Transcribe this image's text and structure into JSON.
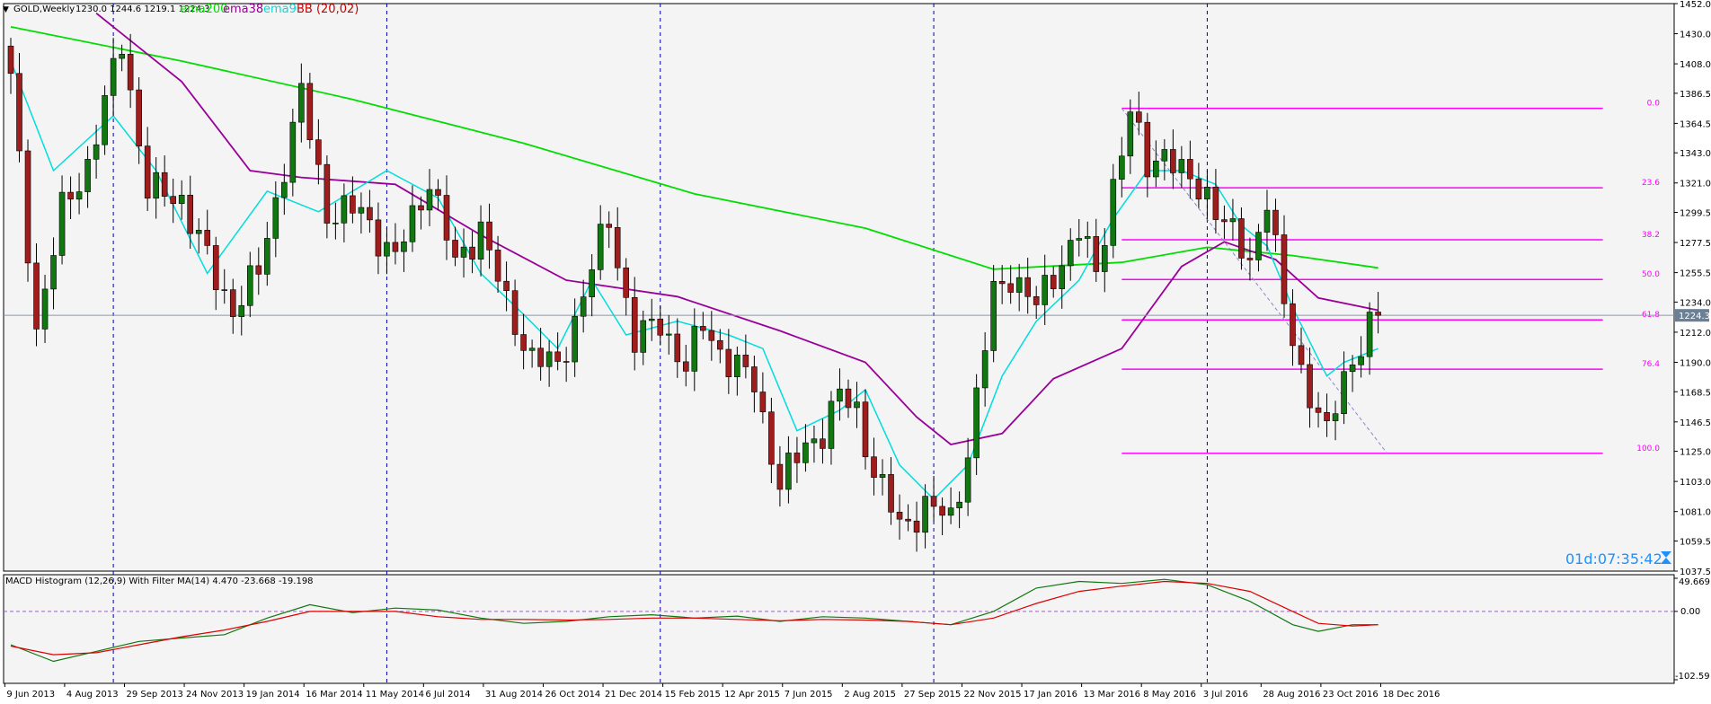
{
  "header": {
    "symbol": "GOLD,Weekly",
    "ohlc": "1230.0 1244.6 1219.1 1224.3",
    "indicators": [
      {
        "label": "ema200",
        "color": "#00dd00"
      },
      {
        "label": "ema38",
        "color": "#990099"
      },
      {
        "label": "ema9",
        "color": "#00dddd"
      },
      {
        "label": "BB (20,02)",
        "color": "#cc0000"
      }
    ]
  },
  "timer": "01d:07:35:42",
  "macd": {
    "title": "MACD Histogram (12,26,9) With Filter MA(14) 4.470 -23.668 -19.198",
    "ticks": [
      "49.669",
      "0.00",
      "-102.59"
    ]
  },
  "colors": {
    "background": "#f4f4f4",
    "bull": "#117711",
    "bear": "#a01d1d",
    "fib": "#ff00ff",
    "grid": "#0000aa",
    "axis": "#000000",
    "timer": "#1e90ff"
  },
  "chart_data": [
    {
      "type": "candlestick",
      "title": "GOLD,Weekly",
      "y_ticks": [
        1452.0,
        1430.0,
        1408.0,
        1386.5,
        1364.5,
        1343.0,
        1321.0,
        1299.5,
        1277.5,
        1255.5,
        1234.0,
        1212.0,
        1190.0,
        1168.5,
        1146.5,
        1125.0,
        1103.0,
        1081.0,
        1059.5,
        1037.5
      ],
      "x_labels": [
        "9 Jun 2013",
        "4 Aug 2013",
        "29 Sep 2013",
        "24 Nov 2013",
        "19 Jan 2014",
        "16 Mar 2014",
        "11 May 2014",
        "6 Jul 2014",
        "31 Aug 2014",
        "26 Oct 2014",
        "21 Dec 2014",
        "15 Feb 2015",
        "12 Apr 2015",
        "7 Jun 2015",
        "2 Aug 2015",
        "27 Sep 2015",
        "22 Nov 2015",
        "17 Jan 2016",
        "13 Mar 2016",
        "8 May 2016",
        "3 Jul 2016",
        "28 Aug 2016",
        "23 Oct 2016",
        "18 Dec 2016"
      ],
      "current_price": 1224.3,
      "anchor_prices": [
        [
          0,
          1395
        ],
        [
          3,
          1215
        ],
        [
          6,
          1300
        ],
        [
          9,
          1335
        ],
        [
          11,
          1378
        ],
        [
          13,
          1425
        ],
        [
          16,
          1315
        ],
        [
          20,
          1310
        ],
        [
          24,
          1250
        ],
        [
          26,
          1230
        ],
        [
          29,
          1255
        ],
        [
          32,
          1335
        ],
        [
          34,
          1385
        ],
        [
          37,
          1300
        ],
        [
          41,
          1300
        ],
        [
          45,
          1265
        ],
        [
          49,
          1325
        ],
        [
          52,
          1260
        ],
        [
          55,
          1290
        ],
        [
          58,
          1230
        ],
        [
          61,
          1195
        ],
        [
          64,
          1185
        ],
        [
          67,
          1240
        ],
        [
          70,
          1295
        ],
        [
          73,
          1205
        ],
        [
          76,
          1220
        ],
        [
          79,
          1185
        ],
        [
          81,
          1218
        ],
        [
          84,
          1190
        ],
        [
          87,
          1175
        ],
        [
          90,
          1100
        ],
        [
          93,
          1130
        ],
        [
          95,
          1140
        ],
        [
          97,
          1165
        ],
        [
          99,
          1155
        ],
        [
          101,
          1110
        ],
        [
          104,
          1070
        ],
        [
          107,
          1085
        ],
        [
          110,
          1075
        ],
        [
          112,
          1125
        ],
        [
          115,
          1240
        ],
        [
          117,
          1255
        ],
        [
          120,
          1230
        ],
        [
          122,
          1255
        ],
        [
          125,
          1285
        ],
        [
          127,
          1255
        ],
        [
          129,
          1320
        ],
        [
          131,
          1370
        ],
        [
          133,
          1335
        ],
        [
          135,
          1345
        ],
        [
          137,
          1325
        ],
        [
          140,
          1315
        ],
        [
          142,
          1290
        ],
        [
          145,
          1265
        ],
        [
          147,
          1310
        ],
        [
          149,
          1230
        ],
        [
          151,
          1185
        ],
        [
          154,
          1135
        ],
        [
          156,
          1180
        ],
        [
          158,
          1205
        ],
        [
          160,
          1225
        ]
      ],
      "ema200": [
        [
          0,
          1435
        ],
        [
          20,
          1410
        ],
        [
          40,
          1382
        ],
        [
          60,
          1350
        ],
        [
          80,
          1313
        ],
        [
          100,
          1288
        ],
        [
          115,
          1258
        ],
        [
          130,
          1263
        ],
        [
          140,
          1274
        ],
        [
          150,
          1268
        ],
        [
          160,
          1259
        ]
      ],
      "ema38": [
        [
          10,
          1445
        ],
        [
          20,
          1395
        ],
        [
          28,
          1330
        ],
        [
          34,
          1325
        ],
        [
          45,
          1320
        ],
        [
          55,
          1283
        ],
        [
          65,
          1250
        ],
        [
          78,
          1238
        ],
        [
          90,
          1213
        ],
        [
          100,
          1190
        ],
        [
          106,
          1150
        ],
        [
          110,
          1130
        ],
        [
          116,
          1138
        ],
        [
          122,
          1178
        ],
        [
          130,
          1200
        ],
        [
          137,
          1260
        ],
        [
          142,
          1278
        ],
        [
          148,
          1265
        ],
        [
          153,
          1237
        ],
        [
          160,
          1228
        ]
      ],
      "ema9": [
        [
          0,
          1410
        ],
        [
          5,
          1330
        ],
        [
          12,
          1370
        ],
        [
          17,
          1330
        ],
        [
          23,
          1255
        ],
        [
          30,
          1315
        ],
        [
          36,
          1300
        ],
        [
          44,
          1330
        ],
        [
          50,
          1310
        ],
        [
          55,
          1255
        ],
        [
          60,
          1225
        ],
        [
          64,
          1200
        ],
        [
          68,
          1250
        ],
        [
          72,
          1210
        ],
        [
          78,
          1220
        ],
        [
          84,
          1210
        ],
        [
          88,
          1200
        ],
        [
          92,
          1140
        ],
        [
          97,
          1155
        ],
        [
          100,
          1170
        ],
        [
          104,
          1115
        ],
        [
          108,
          1090
        ],
        [
          112,
          1115
        ],
        [
          116,
          1180
        ],
        [
          120,
          1220
        ],
        [
          125,
          1250
        ],
        [
          129,
          1295
        ],
        [
          133,
          1330
        ],
        [
          137,
          1330
        ],
        [
          141,
          1320
        ],
        [
          144,
          1290
        ],
        [
          147,
          1275
        ],
        [
          150,
          1230
        ],
        [
          154,
          1180
        ],
        [
          156,
          1190
        ],
        [
          160,
          1200
        ]
      ],
      "fibonacci": [
        {
          "level": "0.0",
          "price": 1375.5
        },
        {
          "level": "23.6",
          "price": 1317.5
        },
        {
          "level": "38.2",
          "price": 1279.5
        },
        {
          "level": "50.0",
          "price": 1250.5
        },
        {
          "level": "61.8",
          "price": 1221.0
        },
        {
          "level": "76.4",
          "price": 1185.0
        },
        {
          "level": "100.0",
          "price": 1123.5
        }
      ]
    },
    {
      "type": "line",
      "title": "MACD Histogram (12,26,9) With Filter MA(14) 4.470 -23.668 -19.198",
      "ylim": [
        -102.59,
        49.669
      ],
      "series": [
        {
          "color": "#117711",
          "values": [
            [
              0,
              -50
            ],
            [
              5,
              -75
            ],
            [
              10,
              -60
            ],
            [
              15,
              -45
            ],
            [
              20,
              -40
            ],
            [
              25,
              -35
            ],
            [
              30,
              -10
            ],
            [
              35,
              10
            ],
            [
              40,
              -2
            ],
            [
              45,
              5
            ],
            [
              50,
              2
            ],
            [
              55,
              -10
            ],
            [
              60,
              -18
            ],
            [
              65,
              -15
            ],
            [
              70,
              -8
            ],
            [
              75,
              -5
            ],
            [
              80,
              -10
            ],
            [
              85,
              -7
            ],
            [
              90,
              -15
            ],
            [
              95,
              -8
            ],
            [
              100,
              -10
            ],
            [
              105,
              -15
            ],
            [
              110,
              -20
            ],
            [
              115,
              0
            ],
            [
              120,
              35
            ],
            [
              125,
              45
            ],
            [
              130,
              42
            ],
            [
              135,
              48
            ],
            [
              140,
              40
            ],
            [
              145,
              15
            ],
            [
              150,
              -20
            ],
            [
              153,
              -30
            ],
            [
              157,
              -20
            ],
            [
              160,
              -20
            ]
          ]
        },
        {
          "color": "#dd0000",
          "values": [
            [
              0,
              -52
            ],
            [
              5,
              -65
            ],
            [
              10,
              -62
            ],
            [
              15,
              -50
            ],
            [
              20,
              -38
            ],
            [
              25,
              -28
            ],
            [
              30,
              -15
            ],
            [
              35,
              0
            ],
            [
              40,
              0
            ],
            [
              45,
              0
            ],
            [
              50,
              -8
            ],
            [
              55,
              -12
            ],
            [
              60,
              -12
            ],
            [
              65,
              -13
            ],
            [
              70,
              -12
            ],
            [
              75,
              -10
            ],
            [
              80,
              -10
            ],
            [
              85,
              -12
            ],
            [
              90,
              -14
            ],
            [
              95,
              -12
            ],
            [
              100,
              -13
            ],
            [
              105,
              -15
            ],
            [
              110,
              -20
            ],
            [
              115,
              -10
            ],
            [
              120,
              12
            ],
            [
              125,
              30
            ],
            [
              130,
              38
            ],
            [
              135,
              45
            ],
            [
              140,
              42
            ],
            [
              145,
              30
            ],
            [
              150,
              0
            ],
            [
              153,
              -18
            ],
            [
              157,
              -22
            ],
            [
              160,
              -20
            ]
          ]
        }
      ]
    }
  ]
}
